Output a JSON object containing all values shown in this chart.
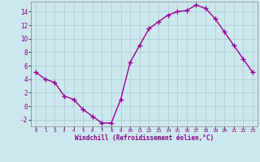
{
  "x": [
    0,
    1,
    2,
    3,
    4,
    5,
    6,
    7,
    8,
    9,
    10,
    11,
    12,
    13,
    14,
    15,
    16,
    17,
    18,
    19,
    20,
    21,
    22,
    23
  ],
  "y": [
    5,
    4,
    3.5,
    1.5,
    1,
    -0.5,
    -1.5,
    -2.5,
    -2.5,
    1,
    6.5,
    9,
    11.5,
    12.5,
    13.5,
    14,
    14.2,
    15,
    14.5,
    13,
    11,
    9,
    7,
    5
  ],
  "line_color": "#990099",
  "marker": "+",
  "bg_color": "#cce8ee",
  "grid_color": "#aacccc",
  "xlabel": "Windchill (Refroidissement éolien,°C)",
  "ylim": [
    -3,
    15.5
  ],
  "yticks": [
    -2,
    0,
    2,
    4,
    6,
    8,
    10,
    12,
    14
  ],
  "xticks": [
    0,
    1,
    2,
    3,
    4,
    5,
    6,
    7,
    8,
    9,
    10,
    11,
    12,
    13,
    14,
    15,
    16,
    17,
    18,
    19,
    20,
    21,
    22,
    23
  ],
  "tick_color": "#880088",
  "label_color": "#880088",
  "markersize": 4,
  "linewidth": 1.0
}
